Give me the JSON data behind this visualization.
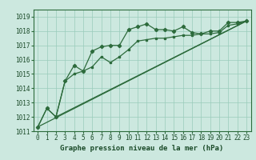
{
  "title": "Graphe pression niveau de la mer (hPa)",
  "bg_color": "#cce8df",
  "plot_bg_color": "#cce8df",
  "grid_color": "#99ccbb",
  "line_color": "#2d6b3c",
  "marker_color": "#2d6b3c",
  "xlim": [
    -0.5,
    23.5
  ],
  "ylim": [
    1011,
    1019.5
  ],
  "xticks": [
    0,
    1,
    2,
    3,
    4,
    5,
    6,
    7,
    8,
    9,
    10,
    11,
    12,
    13,
    14,
    15,
    16,
    17,
    18,
    19,
    20,
    21,
    22,
    23
  ],
  "yticks": [
    1011,
    1012,
    1013,
    1014,
    1015,
    1016,
    1017,
    1018,
    1019
  ],
  "series1_x": [
    0,
    1,
    2,
    3,
    4,
    5,
    6,
    7,
    8,
    9,
    10,
    11,
    12,
    13,
    14,
    15,
    16,
    17,
    18,
    19,
    20,
    21,
    22,
    23
  ],
  "series1_y": [
    1011.3,
    1012.6,
    1012.0,
    1014.5,
    1015.6,
    1015.2,
    1016.6,
    1016.9,
    1017.0,
    1017.0,
    1018.1,
    1018.3,
    1018.5,
    1018.1,
    1018.1,
    1018.0,
    1018.3,
    1017.9,
    1017.8,
    1018.0,
    1018.0,
    1018.6,
    1018.6,
    1018.7
  ],
  "series2_x": [
    0,
    1,
    2,
    3,
    4,
    5,
    6,
    7,
    8,
    9,
    10,
    11,
    12,
    13,
    14,
    15,
    16,
    17,
    18,
    19,
    20,
    21,
    22,
    23
  ],
  "series2_y": [
    1011.3,
    1012.6,
    1012.0,
    1014.5,
    1015.0,
    1015.2,
    1015.5,
    1016.2,
    1015.8,
    1016.2,
    1016.7,
    1017.3,
    1017.4,
    1017.5,
    1017.5,
    1017.6,
    1017.7,
    1017.7,
    1017.8,
    1017.8,
    1017.9,
    1018.4,
    1018.5,
    1018.7
  ],
  "series3_x": [
    0,
    23
  ],
  "series3_y": [
    1011.3,
    1018.7
  ],
  "series4_x": [
    2,
    23
  ],
  "series4_y": [
    1012.0,
    1018.7
  ],
  "xlabel_fontsize": 6.5,
  "tick_fontsize": 5.5
}
